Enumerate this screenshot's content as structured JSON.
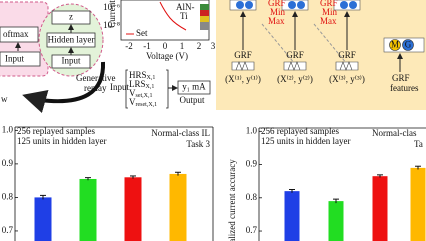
{
  "panels": {
    "replay": {
      "softmax": "oftmax",
      "input_left": "Input",
      "z": "z",
      "hidden": "Hidden layer",
      "input_center": "Input",
      "generative": "Generative",
      "replay": "replay",
      "new": "w"
    },
    "iv": {
      "ylabel": "Current",
      "yticks": [
        "10⁻⁶",
        "10⁻⁸"
      ],
      "xticks": [
        "-2",
        "-1",
        "0",
        "1",
        "2",
        "3"
      ],
      "xlabel": "Voltage (V)",
      "set": "Set",
      "device": [
        "AlN-",
        "Ti"
      ]
    },
    "mapping": {
      "input": "Input",
      "rows": [
        {
          "text": "HRS",
          "sub": "X,1"
        },
        {
          "text": "LRS",
          "sub": "X,1"
        },
        {
          "text": "V",
          "sub": "set,X,1"
        },
        {
          "text": "V",
          "sub": "reset,X,1"
        }
      ],
      "output_value": "y₁ mA",
      "output": "Output"
    },
    "grf": {
      "labels": [
        "GRF",
        "GRF",
        "GRF"
      ],
      "minmax": [
        [
          "GRF",
          "Min",
          "Max"
        ],
        [
          "GRF",
          "Min",
          "Max"
        ]
      ],
      "tuples": [
        "(X⁽¹⁾, y⁽¹⁾)",
        "(X⁽²⁾, y⁽²⁾)",
        "(X⁽³⁾, y⁽³⁾)"
      ],
      "circles": [
        "M",
        "G"
      ],
      "features": [
        "GRF",
        "features"
      ]
    }
  },
  "chart_data": [
    {
      "type": "bar",
      "annotations": [
        "256 replayed samples",
        "125 units in hidden layer",
        "Normal-class IL",
        "Task 3"
      ],
      "categories": [
        null,
        null,
        null,
        null
      ],
      "values": [
        0.8,
        0.855,
        0.86,
        0.87
      ],
      "errors": [
        0.006,
        0.004,
        0.004,
        0.005
      ],
      "colors": [
        "#1f3fe6",
        "#22dd22",
        "#ee1111",
        "#ffb800"
      ],
      "ylim": [
        0.67,
        1.01
      ],
      "yticks": [
        0.7,
        0.8,
        0.9,
        {
          "value": 1,
          "label": "1.0"
        }
      ]
    },
    {
      "type": "bar",
      "ylabel": "malized current accuracy",
      "annotations": [
        "256 replayed samples",
        "125 units in hidden layer",
        "Normal-clas",
        "Ta"
      ],
      "categories": [
        null,
        null,
        null,
        null
      ],
      "values": [
        0.82,
        0.79,
        0.865,
        0.89
      ],
      "errors": [
        0.005,
        0.006,
        0.004,
        0.005
      ],
      "colors": [
        "#1f3fe6",
        "#22dd22",
        "#ee1111",
        "#ffb800"
      ],
      "ylim": [
        0.67,
        1.01
      ],
      "yticks": [
        0.7,
        0.8,
        0.9,
        {
          "value": 1,
          "label": "1.0"
        }
      ]
    }
  ]
}
